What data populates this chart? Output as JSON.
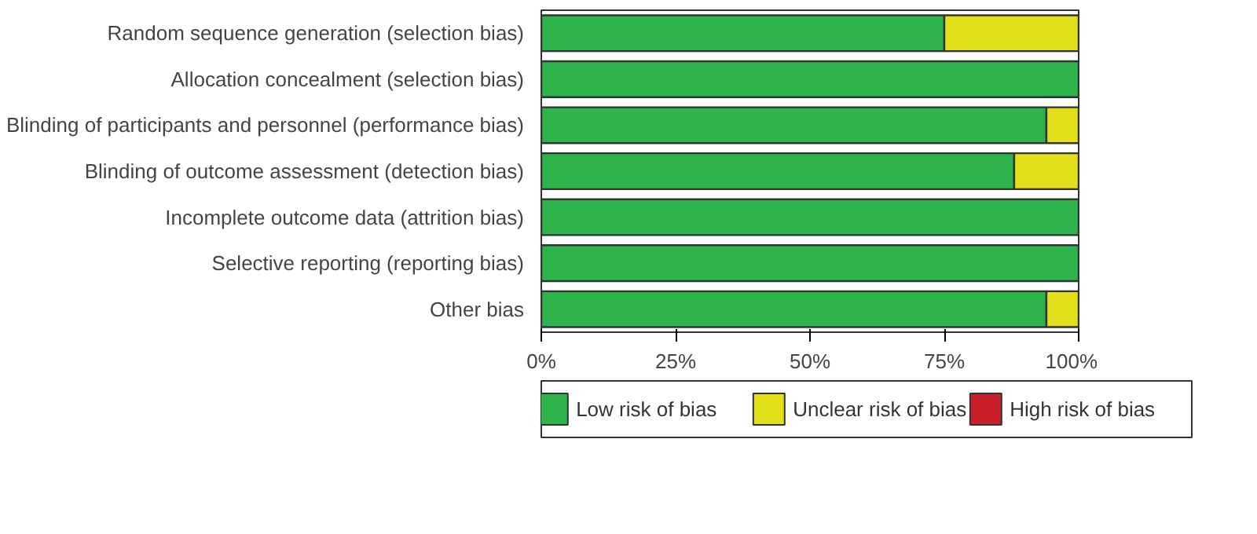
{
  "chart_data": {
    "type": "bar",
    "orientation": "horizontal",
    "stacked": true,
    "categories": [
      "Random sequence generation (selection bias)",
      "Allocation concealment (selection bias)",
      "Blinding of participants and personnel (performance bias)",
      "Blinding of outcome assessment (detection bias)",
      "Incomplete outcome data (attrition bias)",
      "Selective reporting (reporting bias)",
      "Other bias"
    ],
    "series": [
      {
        "name": "Low risk of bias",
        "color": "#2db34a",
        "values": [
          75,
          100,
          94,
          88,
          100,
          100,
          94
        ]
      },
      {
        "name": "Unclear risk of bias",
        "color": "#e2e01a",
        "values": [
          25,
          0,
          6,
          12,
          0,
          0,
          6
        ]
      },
      {
        "name": "High risk of bias",
        "color": "#c8202a",
        "values": [
          0,
          0,
          0,
          0,
          0,
          0,
          0
        ]
      }
    ],
    "xlim": [
      0,
      100
    ],
    "xticks": [
      {
        "value": 0,
        "label": "0%"
      },
      {
        "value": 25,
        "label": "25%"
      },
      {
        "value": 50,
        "label": "50%"
      },
      {
        "value": 75,
        "label": "75%"
      },
      {
        "value": 100,
        "label": "100%"
      }
    ],
    "grid": false,
    "legend": "bottom"
  }
}
